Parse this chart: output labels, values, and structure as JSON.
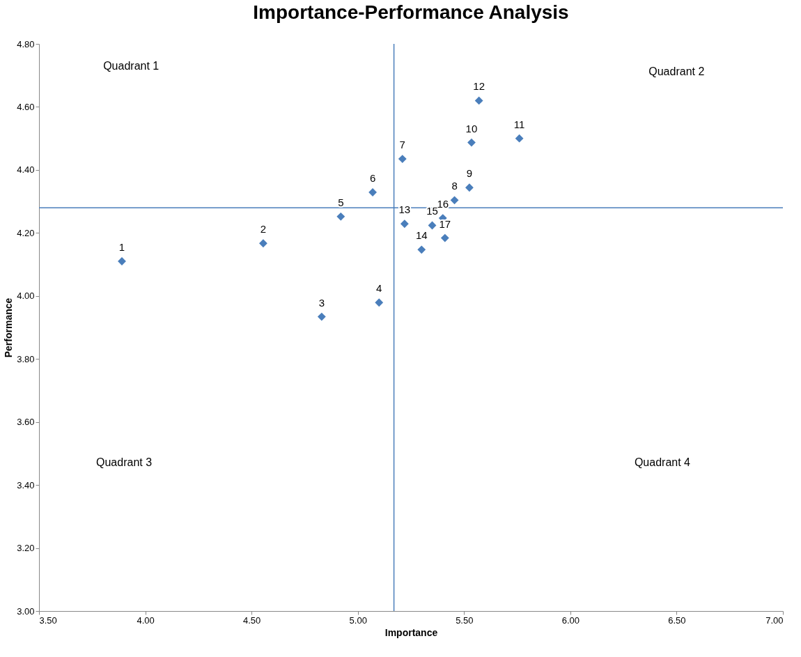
{
  "chart_data": {
    "type": "scatter",
    "title": "Importance-Performance Analysis",
    "xlabel": "Importance",
    "ylabel": "Performance",
    "x": [
      3.89,
      4.555,
      4.83,
      5.1,
      4.92,
      5.07,
      5.21,
      5.455,
      5.525,
      5.535,
      5.76,
      5.57,
      5.22,
      5.3,
      5.35,
      5.4,
      5.41
    ],
    "series": [
      {
        "color": "#4a7ebb",
        "values": [
          4.11,
          4.167,
          3.934,
          3.979,
          4.252,
          4.329,
          4.435,
          4.304,
          4.344,
          4.487,
          4.5,
          4.62,
          4.229,
          4.147,
          4.224,
          4.247,
          4.184
        ]
      }
    ],
    "xlim": [
      3.5,
      7.0
    ],
    "ylim": [
      3.0,
      4.8
    ],
    "xticks": [
      {
        "value": 3.5,
        "label": "3.50"
      },
      {
        "value": 4.0,
        "label": "4.00"
      },
      {
        "value": 4.5,
        "label": "4.50"
      },
      {
        "value": 5.0,
        "label": "5.00"
      },
      {
        "value": 5.5,
        "label": "5.50"
      },
      {
        "value": 6.0,
        "label": "6.00"
      },
      {
        "value": 6.5,
        "label": "6.50"
      },
      {
        "value": 7.0,
        "label": "7.00"
      }
    ],
    "yticks": [
      {
        "value": 3.0,
        "label": "3.00"
      },
      {
        "value": 3.2,
        "label": "3.20"
      },
      {
        "value": 3.4,
        "label": "3.40"
      },
      {
        "value": 3.6,
        "label": "3.60"
      },
      {
        "value": 3.8,
        "label": "3.80"
      },
      {
        "value": 4.0,
        "label": "4.00"
      },
      {
        "value": 4.2,
        "label": "4.20"
      },
      {
        "value": 4.4,
        "label": "4.40"
      },
      {
        "value": 4.6,
        "label": "4.60"
      },
      {
        "value": 4.8,
        "label": "4.80"
      }
    ],
    "ref_lines": [
      {
        "axis": "x",
        "value": 5.17,
        "color": "#4a7ebb"
      },
      {
        "axis": "y",
        "value": 4.28,
        "color": "#4a7ebb"
      }
    ],
    "annotations": [
      "Quadrant 1",
      "Quadrant 2",
      "Quadrant 3",
      "Quadrant  4",
      {
        "text": "1",
        "x": 3.89,
        "y": 4.11
      },
      {
        "text": "2",
        "x": 4.555,
        "y": 4.167
      },
      {
        "text": "3",
        "x": 4.83,
        "y": 3.934
      },
      {
        "text": "4",
        "x": 5.1,
        "y": 3.979
      },
      {
        "text": "5",
        "x": 4.92,
        "y": 4.252
      },
      {
        "text": "6",
        "x": 5.07,
        "y": 4.329
      },
      {
        "text": "7",
        "x": 5.21,
        "y": 4.435
      },
      {
        "text": "8",
        "x": 5.455,
        "y": 4.304
      },
      {
        "text": "9",
        "x": 5.525,
        "y": 4.344
      },
      {
        "text": "10",
        "x": 5.535,
        "y": 4.487
      },
      {
        "text": "11",
        "x": 5.76,
        "y": 4.5
      },
      {
        "text": "12",
        "x": 5.57,
        "y": 4.62
      },
      {
        "text": "13",
        "x": 5.22,
        "y": 4.229
      },
      {
        "text": "14",
        "x": 5.3,
        "y": 4.147
      },
      {
        "text": "15",
        "x": 5.35,
        "y": 4.224
      },
      {
        "text": "16",
        "x": 5.4,
        "y": 4.247
      },
      {
        "text": "17",
        "x": 5.41,
        "y": 4.184
      }
    ],
    "marker": "diamond",
    "grid": false
  }
}
